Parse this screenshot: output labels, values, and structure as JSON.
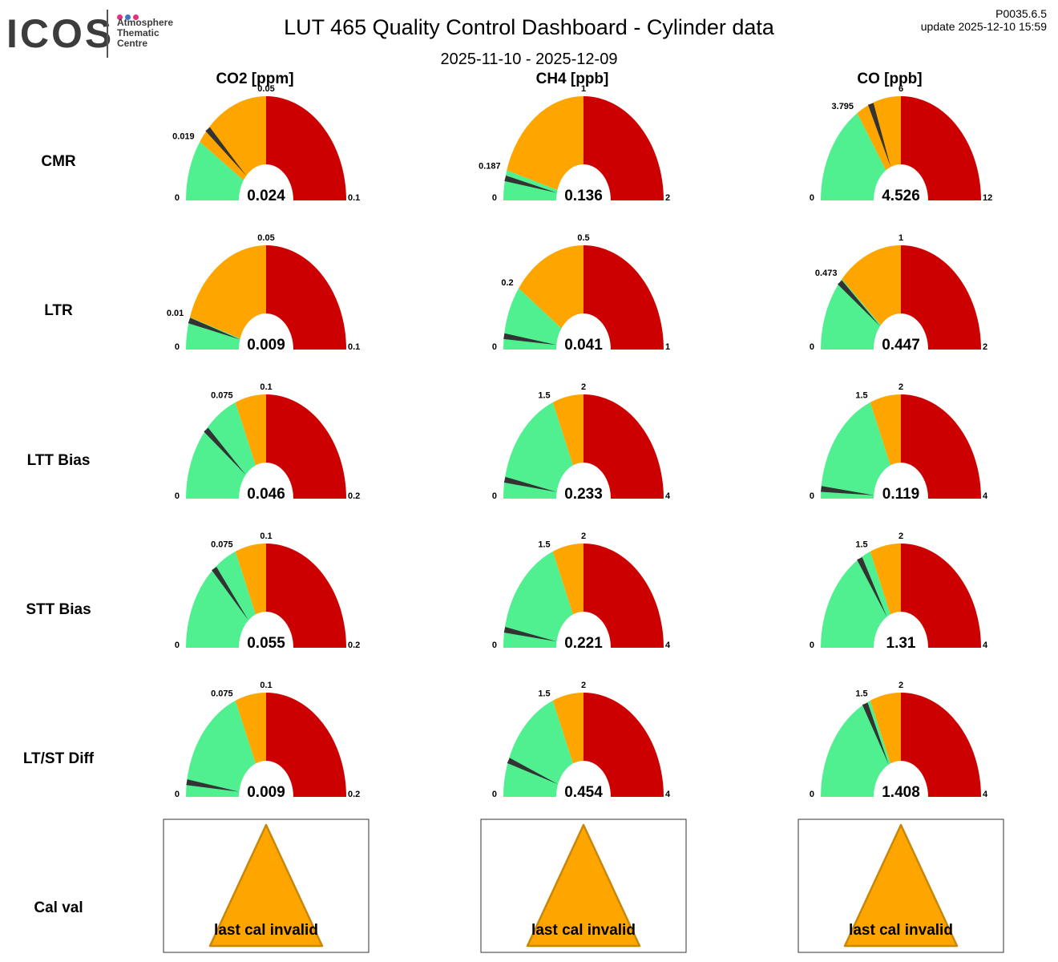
{
  "header": {
    "title": "LUT 465 Quality Control Dashboard - Cylinder data",
    "date_range": "2025-11-10 - 2025-12-09",
    "version": "P0035.6.5",
    "update": "update  2025-12-10 15:59"
  },
  "logo": {
    "word": "ICOS",
    "lines": [
      "Atmosphere",
      "Thematic",
      "Centre"
    ],
    "dot_colors": [
      "#e8317e",
      "#3a78c3",
      "#e8317e"
    ]
  },
  "colors": {
    "good": "#50f090",
    "warn": "#ffa500",
    "bad": "#cc0000",
    "needle": "#333333"
  },
  "chart_data": {
    "type": "gauge",
    "columns": [
      "CO2 [ppm]",
      "CH4 [ppb]",
      "CO [ppb]"
    ],
    "rows": [
      "CMR",
      "LTR",
      "LTT Bias",
      "STT Bias",
      "LT/ST Diff",
      "Cal val"
    ],
    "gauges": [
      [
        {
          "min": "0",
          "max": "0.1",
          "green_max": 0.019,
          "orange_max": 0.05,
          "green_label": "0.019",
          "orange_label": "0.05",
          "value": 0.024,
          "value_label": "0.024"
        },
        {
          "min": "0",
          "max": "2",
          "green_max": 0.187,
          "orange_max": 1,
          "green_label": "0.187",
          "orange_label": "1",
          "value": 0.136,
          "value_label": "0.136"
        },
        {
          "min": "0",
          "max": "12",
          "green_max": 3.795,
          "orange_max": 6,
          "green_label": "3.795",
          "orange_label": "6",
          "value": 4.526,
          "value_label": "4.526"
        }
      ],
      [
        {
          "min": "0",
          "max": "0.1",
          "green_max": 0.01,
          "orange_max": 0.05,
          "green_label": "0.01",
          "orange_label": "0.05",
          "value": 0.009,
          "value_label": "0.009"
        },
        {
          "min": "0",
          "max": "1",
          "green_max": 0.2,
          "orange_max": 0.5,
          "green_label": "0.2",
          "orange_label": "0.5",
          "value": 0.041,
          "value_label": "0.041"
        },
        {
          "min": "0",
          "max": "2",
          "green_max": 0.473,
          "orange_max": 1,
          "green_label": "0.473",
          "orange_label": "1",
          "value": 0.447,
          "value_label": "0.447"
        }
      ],
      [
        {
          "min": "0",
          "max": "0.2",
          "green_max": 0.075,
          "orange_max": 0.1,
          "green_label": "0.075",
          "orange_label": "0.1",
          "value": 0.046,
          "value_label": "0.046"
        },
        {
          "min": "0",
          "max": "4",
          "green_max": 1.5,
          "orange_max": 2,
          "green_label": "1.5",
          "orange_label": "2",
          "value": 0.233,
          "value_label": "0.233"
        },
        {
          "min": "0",
          "max": "4",
          "green_max": 1.5,
          "orange_max": 2,
          "green_label": "1.5",
          "orange_label": "2",
          "value": 0.119,
          "value_label": "0.119"
        }
      ],
      [
        {
          "min": "0",
          "max": "0.2",
          "green_max": 0.075,
          "orange_max": 0.1,
          "green_label": "0.075",
          "orange_label": "0.1",
          "value": 0.055,
          "value_label": "0.055"
        },
        {
          "min": "0",
          "max": "4",
          "green_max": 1.5,
          "orange_max": 2,
          "green_label": "1.5",
          "orange_label": "2",
          "value": 0.221,
          "value_label": "0.221"
        },
        {
          "min": "0",
          "max": "4",
          "green_max": 1.5,
          "orange_max": 2,
          "green_label": "1.5",
          "orange_label": "2",
          "value": 1.31,
          "value_label": "1.31"
        }
      ],
      [
        {
          "min": "0",
          "max": "0.2",
          "green_max": 0.075,
          "orange_max": 0.1,
          "green_label": "0.075",
          "orange_label": "0.1",
          "value": 0.009,
          "value_label": "0.009"
        },
        {
          "min": "0",
          "max": "4",
          "green_max": 1.5,
          "orange_max": 2,
          "green_label": "1.5",
          "orange_label": "2",
          "value": 0.454,
          "value_label": "0.454"
        },
        {
          "min": "0",
          "max": "4",
          "green_max": 1.5,
          "orange_max": 2,
          "green_label": "1.5",
          "orange_label": "2",
          "value": 1.408,
          "value_label": "1.408"
        }
      ]
    ],
    "cal_val": [
      {
        "status": "warning",
        "label": "last cal invalid"
      },
      {
        "status": "warning",
        "label": "last cal invalid"
      },
      {
        "status": "warning",
        "label": "last cal invalid"
      }
    ]
  }
}
